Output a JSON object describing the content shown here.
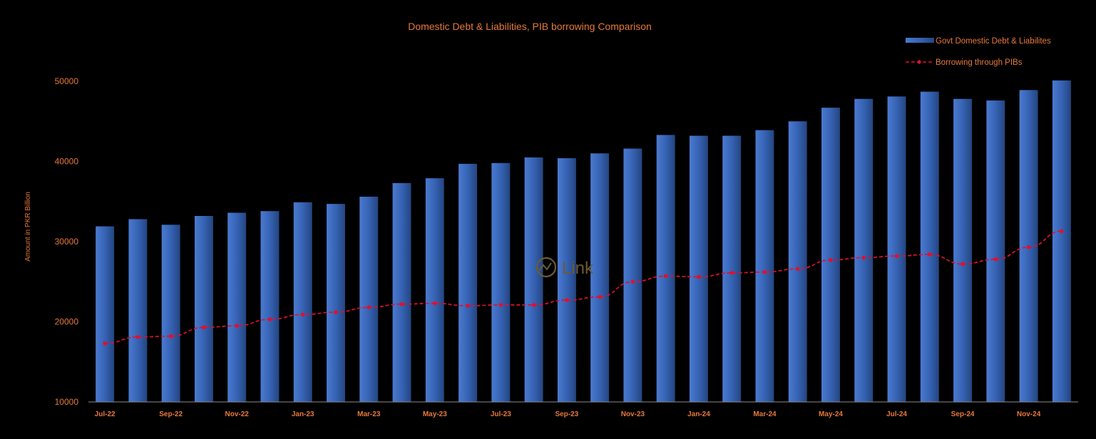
{
  "chart_data": {
    "type": "bar",
    "title": "Domestic Debt & Liabilities, PIB borrowing Comparison",
    "ylabel": "Amount in PKR Billion",
    "ylim": [
      10000,
      50000
    ],
    "yticks": [
      10000,
      20000,
      30000,
      40000,
      50000
    ],
    "x_tick_labels": [
      "Jul-22",
      "Sep-22",
      "Nov-22",
      "Jan-23",
      "Mar-23",
      "May-23",
      "Jul-23",
      "Sep-23",
      "Nov-23",
      "Jan-24",
      "Mar-24",
      "May-24",
      "Jul-24",
      "Sep-24",
      "Nov-24"
    ],
    "categories": [
      "Jul-22",
      "Aug-22",
      "Sep-22",
      "Oct-22",
      "Nov-22",
      "Dec-22",
      "Jan-23",
      "Feb-23",
      "Mar-23",
      "Apr-23",
      "May-23",
      "Jun-23",
      "Jul-23",
      "Aug-23",
      "Sep-23",
      "Oct-23",
      "Nov-23",
      "Dec-23",
      "Jan-24",
      "Feb-24",
      "Mar-24",
      "Apr-24",
      "May-24",
      "Jun-24",
      "Jul-24",
      "Aug-24",
      "Sep-24",
      "Oct-24",
      "Nov-24",
      "Dec-24"
    ],
    "series": [
      {
        "name": "Govt Domestic Debt & Liabilites",
        "kind": "bar",
        "color": "#3a66b8",
        "values": [
          31900,
          32800,
          32100,
          33200,
          33600,
          33800,
          34900,
          34700,
          35600,
          37300,
          37900,
          39700,
          39800,
          40500,
          40400,
          41000,
          41600,
          43300,
          43200,
          43200,
          43900,
          45000,
          46700,
          47800,
          48100,
          48700,
          47800,
          47600,
          48900,
          50100
        ]
      },
      {
        "name": "Borrowing through PIBs",
        "kind": "line",
        "color": "#e0102e",
        "values": [
          17300,
          18100,
          18200,
          19300,
          19500,
          20300,
          20900,
          21200,
          21800,
          22200,
          22300,
          22000,
          22100,
          22100,
          22700,
          23100,
          25000,
          25700,
          25600,
          26100,
          26200,
          26600,
          27700,
          28000,
          28200,
          28400,
          27200,
          27800,
          29300,
          31300
        ]
      }
    ],
    "legend_position": "top-right",
    "grid": false,
    "watermark": "Link"
  }
}
